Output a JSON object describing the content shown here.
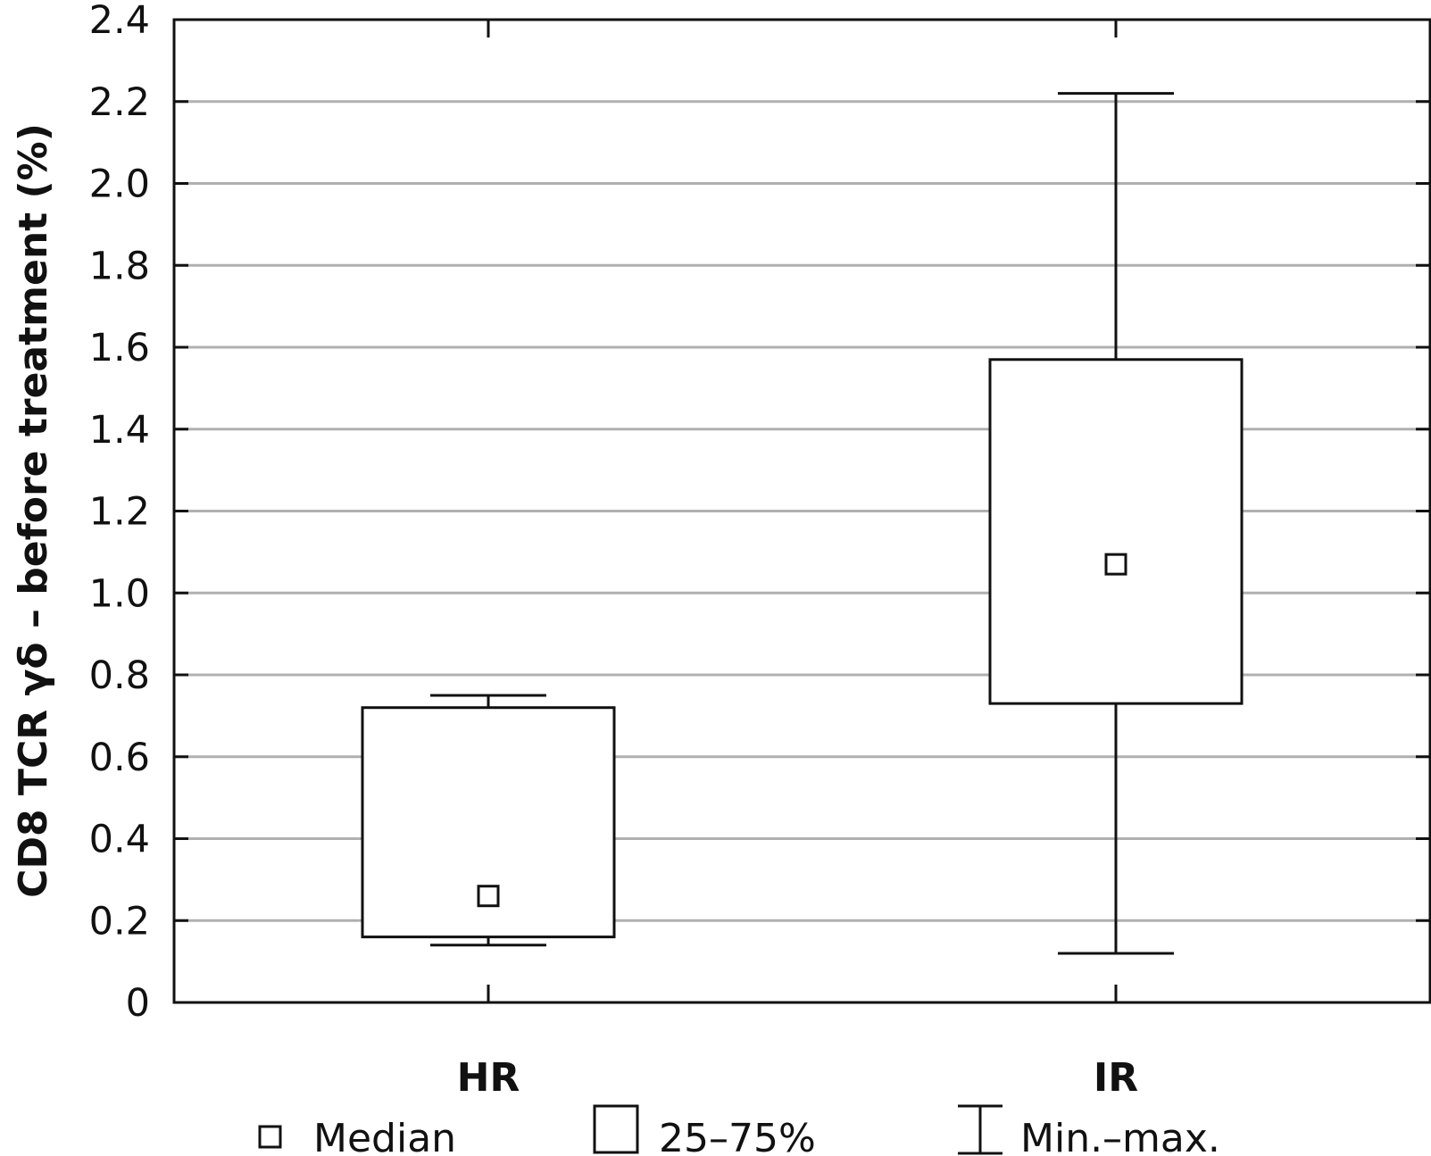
{
  "chart_data": {
    "type": "box",
    "ylabel": "CD8 TCR γδ – before treatment (%)",
    "xlabel": "",
    "ylim": [
      0,
      2.4
    ],
    "yticks": [
      "0",
      "0.2",
      "0.4",
      "0.6",
      "0.8",
      "1.0",
      "1.2",
      "1.4",
      "1.6",
      "1.8",
      "2.0",
      "2.2",
      "2.4"
    ],
    "ytick_values": [
      0,
      0.2,
      0.4,
      0.6,
      0.8,
      1.0,
      1.2,
      1.4,
      1.6,
      1.8,
      2.0,
      2.2,
      2.4
    ],
    "grid": true,
    "categories": [
      "HR",
      "IR"
    ],
    "boxes": [
      {
        "category": "HR",
        "min": 0.14,
        "q1": 0.16,
        "median": 0.26,
        "q3": 0.72,
        "max": 0.75
      },
      {
        "category": "IR",
        "min": 0.12,
        "q1": 0.73,
        "median": 1.07,
        "q3": 1.57,
        "max": 2.22
      }
    ],
    "legend": {
      "placement": "bottom",
      "median_label": "Median",
      "box_label": "25–75%",
      "whisker_label": "Min.–max."
    }
  }
}
